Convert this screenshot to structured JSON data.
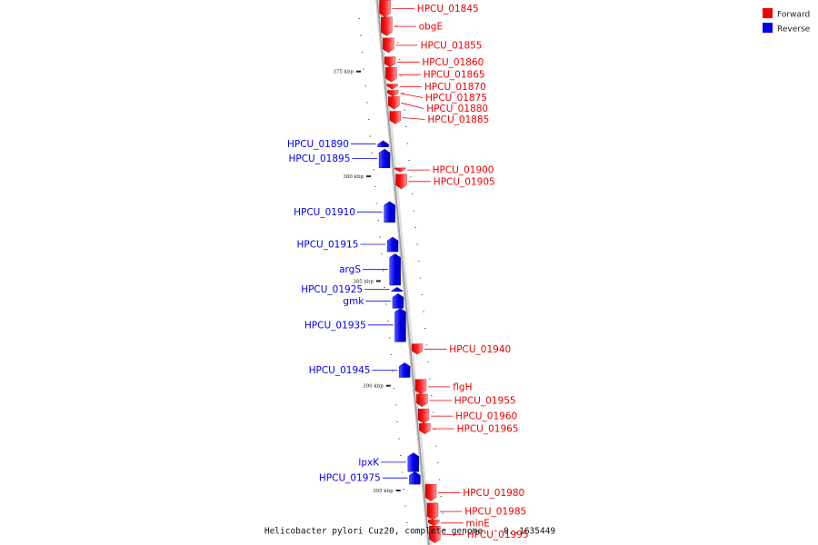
{
  "caption": "Helicobacter pylori Cuz20, complete genome. - 0..1635449",
  "legend": [
    {
      "label": "Forward",
      "color": "#ee0000"
    },
    {
      "label": "Reverse",
      "color": "#0000ee"
    }
  ],
  "colors": {
    "forward": "#ee0000",
    "reverse": "#0000ee",
    "backbone": "#999999"
  },
  "genome_start_kbp": 371.5,
  "genome_end_kbp": 397.6,
  "ticks": [
    {
      "kbp": 375,
      "label": "375 kbp"
    },
    {
      "kbp": 380,
      "label": "380 kbp"
    },
    {
      "kbp": 385,
      "label": "385 kbp"
    },
    {
      "kbp": 390,
      "label": "390 kbp"
    },
    {
      "kbp": 395,
      "label": "395 kbp"
    }
  ],
  "genes": [
    {
      "name": "HPCU_01845",
      "strand": "forward",
      "start": 371.6,
      "end": 372.4
    },
    {
      "name": "obgE",
      "strand": "forward",
      "start": 372.4,
      "end": 373.3
    },
    {
      "name": "HPCU_01855",
      "strand": "forward",
      "start": 373.4,
      "end": 374.1
    },
    {
      "name": "HPCU_01860",
      "strand": "forward",
      "start": 374.3,
      "end": 374.8
    },
    {
      "name": "HPCU_01865",
      "strand": "forward",
      "start": 374.8,
      "end": 375.5
    },
    {
      "name": "HPCU_01870",
      "strand": "forward",
      "start": 375.6,
      "end": 375.85
    },
    {
      "name": "HPCU_01875",
      "strand": "forward",
      "start": 375.9,
      "end": 376.2
    },
    {
      "name": "HPCU_01880",
      "strand": "forward",
      "start": 376.2,
      "end": 376.8
    },
    {
      "name": "HPCU_01885",
      "strand": "forward",
      "start": 376.9,
      "end": 377.5
    },
    {
      "name": "HPCU_01890",
      "strand": "reverse",
      "start": 378.3,
      "end": 378.6
    },
    {
      "name": "HPCU_01895",
      "strand": "reverse",
      "start": 378.7,
      "end": 379.6
    },
    {
      "name": "HPCU_01900",
      "strand": "forward",
      "start": 379.6,
      "end": 379.8
    },
    {
      "name": "HPCU_01905",
      "strand": "forward",
      "start": 379.9,
      "end": 380.6
    },
    {
      "name": "HPCU_01910",
      "strand": "reverse",
      "start": 381.2,
      "end": 382.2
    },
    {
      "name": "HPCU_01915",
      "strand": "reverse",
      "start": 382.9,
      "end": 383.6
    },
    {
      "name": "argS",
      "strand": "reverse",
      "start": 383.7,
      "end": 385.2
    },
    {
      "name": "HPCU_01925",
      "strand": "reverse",
      "start": 385.3,
      "end": 385.5
    },
    {
      "name": "gmk",
      "strand": "reverse",
      "start": 385.6,
      "end": 386.3
    },
    {
      "name": "HPCU_01935",
      "strand": "reverse",
      "start": 386.3,
      "end": 387.9
    },
    {
      "name": "HPCU_01940",
      "strand": "forward",
      "start": 388.0,
      "end": 388.5
    },
    {
      "name": "HPCU_01945",
      "strand": "reverse",
      "start": 388.9,
      "end": 389.6
    },
    {
      "name": "flgH",
      "strand": "forward",
      "start": 389.7,
      "end": 390.4
    },
    {
      "name": "HPCU_01955",
      "strand": "forward",
      "start": 390.4,
      "end": 391.0
    },
    {
      "name": "HPCU_01960",
      "strand": "forward",
      "start": 391.1,
      "end": 391.8
    },
    {
      "name": "HPCU_01965",
      "strand": "forward",
      "start": 391.8,
      "end": 392.3
    },
    {
      "name": "lpxK",
      "strand": "reverse",
      "start": 393.2,
      "end": 394.1
    },
    {
      "name": "HPCU_01975",
      "strand": "reverse",
      "start": 394.1,
      "end": 394.7
    },
    {
      "name": "HPCU_01980",
      "strand": "forward",
      "start": 394.7,
      "end": 395.5
    },
    {
      "name": "HPCU_01985",
      "strand": "forward",
      "start": 395.6,
      "end": 396.4
    },
    {
      "name": "minE",
      "strand": "forward",
      "start": 396.4,
      "end": 396.7
    },
    {
      "name": "HPCU_01995",
      "strand": "forward",
      "start": 396.7,
      "end": 397.5
    }
  ]
}
